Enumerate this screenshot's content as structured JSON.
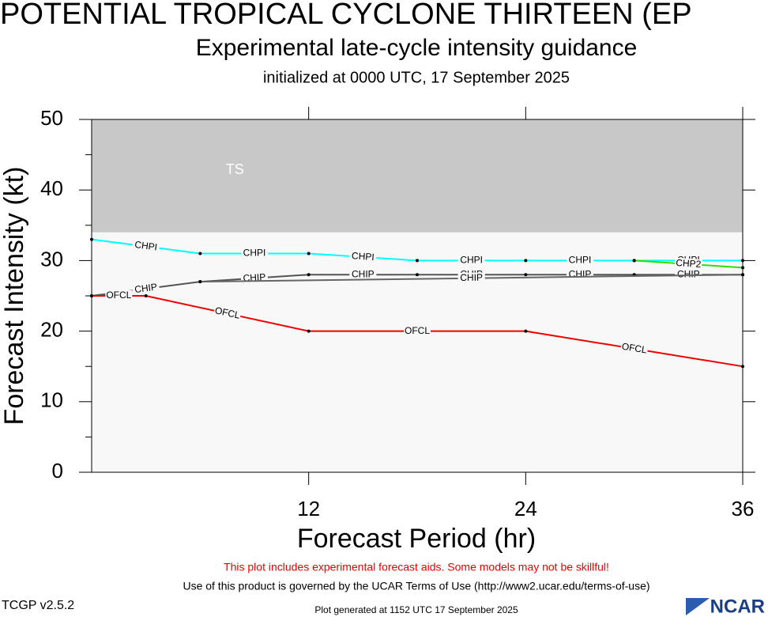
{
  "chart_data": {
    "type": "line",
    "title": "POTENTIAL TROPICAL CYCLONE THIRTEEN (EP",
    "subtitle": "Experimental late-cycle intensity guidance",
    "initialized": "initialized at 0000 UTC, 17 September 2025",
    "xlabel": "Forecast Period (hr)",
    "ylabel": "Forecast Intensity (kt)",
    "xlim": [
      0,
      36
    ],
    "ylim": [
      0,
      50
    ],
    "xticks": [
      12,
      24,
      36
    ],
    "yticks": [
      0,
      10,
      20,
      30,
      40,
      50
    ],
    "yminorticks": [
      5,
      15,
      25,
      35,
      45
    ],
    "bands": [
      {
        "name": "TS",
        "lower": 34,
        "upper": 50,
        "color": "#c8c8c8"
      }
    ],
    "series": [
      {
        "name": "CHPI",
        "color": "#00ffff",
        "x": [
          0,
          6,
          12,
          18,
          24,
          30,
          36
        ],
        "values": [
          33,
          31,
          31,
          30,
          30,
          30,
          30
        ]
      },
      {
        "name": "CHP2",
        "color": "#33dd00",
        "x": [
          30,
          36
        ],
        "values": [
          30,
          29
        ]
      },
      {
        "name": "CHIP",
        "color": "#555555",
        "x": [
          0,
          6,
          12,
          18,
          24,
          30,
          36
        ],
        "values": [
          25,
          27,
          28,
          28,
          28,
          28,
          28
        ]
      },
      {
        "name": "CHIP",
        "color": "#666666",
        "x": [
          6,
          36
        ],
        "values": [
          27,
          28
        ]
      },
      {
        "name": "OFCL",
        "color": "#ee0000",
        "x": [
          0,
          3,
          12,
          24,
          36
        ],
        "values": [
          25,
          25,
          20,
          20,
          15
        ]
      }
    ],
    "warning": "This plot includes experimental forecast aids. Some models may not be skillful!",
    "terms": "Use of this product is governed by the UCAR Terms of Use (http://www2.ucar.edu/terms-of-use)",
    "version": "TCGP v2.5.2",
    "generated": "Plot generated at 1152 UTC   17 September 2025",
    "logo": "NCAR"
  }
}
